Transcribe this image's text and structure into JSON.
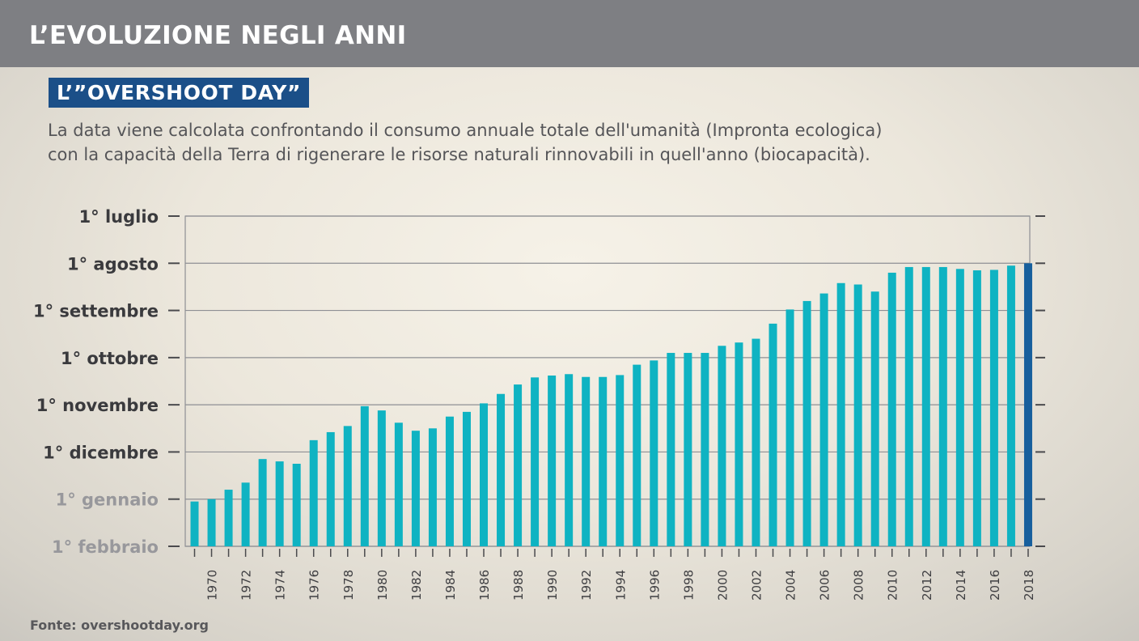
{
  "header": {
    "title": "L’EVOLUZIONE NEGLI ANNI"
  },
  "subtitle": "L’”OVERSHOOT DAY”",
  "description": {
    "line1": "La data  viene calcolata confrontando il consumo annuale totale dell'umanità (Impronta ecologica)",
    "line2": "con la capacità della Terra di rigenerare le risorse naturali rinnovabili in quell'anno (biocapacità)."
  },
  "source": "Fonte: overshootday.org",
  "colors": {
    "bar": "#0fb3c2",
    "bar_highlight": "#175f9d",
    "grid": "#8e8f94",
    "label_dark": "#3a3a3d",
    "label_faded": "#98989c"
  },
  "chart_data": {
    "type": "bar",
    "title": "L’”OVERSHOOT DAY”",
    "xlabel": "",
    "ylabel": "",
    "y_axis_note": "Overshoot date expressed as month position: 6 = 1° luglio ... 13 = 1° febbraio of following year (axis inverted, earlier dates at top)",
    "ylim": [
      13,
      6
    ],
    "y_ticks": [
      {
        "value": 6,
        "label": "1° luglio"
      },
      {
        "value": 7,
        "label": "1° agosto"
      },
      {
        "value": 8,
        "label": "1° settembre"
      },
      {
        "value": 9,
        "label": "1° ottobre"
      },
      {
        "value": 10,
        "label": "1° novembre"
      },
      {
        "value": 11,
        "label": "1° dicembre"
      },
      {
        "value": 12,
        "label": "1° gennaio"
      },
      {
        "value": 13,
        "label": "1° febbraio"
      }
    ],
    "faded_y_ticks": [
      "1° gennaio",
      "1° febbraio"
    ],
    "categories": [
      1969,
      1970,
      1971,
      1972,
      1973,
      1974,
      1975,
      1976,
      1977,
      1978,
      1979,
      1980,
      1981,
      1982,
      1983,
      1984,
      1985,
      1986,
      1987,
      1988,
      1989,
      1990,
      1991,
      1992,
      1993,
      1994,
      1995,
      1996,
      1997,
      1998,
      1999,
      2000,
      2001,
      2002,
      2003,
      2004,
      2005,
      2006,
      2007,
      2008,
      2009,
      2010,
      2011,
      2012,
      2013,
      2014,
      2015,
      2016,
      2017,
      2018
    ],
    "x_tick_labels": [
      "1970",
      "1972",
      "1974",
      "1976",
      "1978",
      "1980",
      "1982",
      "1984",
      "1986",
      "1988",
      "1990",
      "1992",
      "1994",
      "1996",
      "1998",
      "2000",
      "2002",
      "2004",
      "2006",
      "2008",
      "2010",
      "2012",
      "2014",
      "2016",
      "2018"
    ],
    "values": [
      12.05,
      12.0,
      11.8,
      11.65,
      11.15,
      11.2,
      11.25,
      10.75,
      10.58,
      10.45,
      10.03,
      10.12,
      10.38,
      10.55,
      10.5,
      10.25,
      10.15,
      9.97,
      9.77,
      9.57,
      9.42,
      9.38,
      9.35,
      9.41,
      9.41,
      9.37,
      9.15,
      9.06,
      8.9,
      8.9,
      8.9,
      8.75,
      8.68,
      8.6,
      8.28,
      7.98,
      7.8,
      7.64,
      7.42,
      7.45,
      7.6,
      7.2,
      7.08,
      7.08,
      7.08,
      7.12,
      7.15,
      7.14,
      7.05,
      7.0
    ],
    "highlight_category": 2018
  }
}
